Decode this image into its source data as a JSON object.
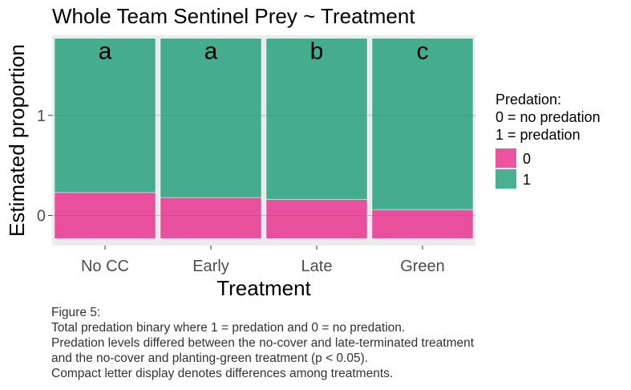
{
  "chart_data": {
    "type": "bar",
    "stacked": true,
    "title": "Whole Team Sentinel Prey ~ Treatment",
    "xlabel": "Treatment",
    "ylabel": "Estimated proportion",
    "categories": [
      "No CC",
      "Early",
      "Late",
      "Green"
    ],
    "ylim": [
      -0.3,
      1.8
    ],
    "yticks": [
      0,
      1
    ],
    "series": [
      {
        "name": "0",
        "color": "#e7298a",
        "lower": [
          -0.23,
          -0.23,
          -0.23,
          -0.23
        ],
        "upper": [
          0.23,
          0.18,
          0.16,
          0.06
        ]
      },
      {
        "name": "1",
        "color": "#1b9e77",
        "lower": [
          0.23,
          0.18,
          0.16,
          0.06
        ],
        "upper": [
          1.77,
          1.77,
          1.77,
          1.77
        ]
      }
    ],
    "letters": [
      "a",
      "a",
      "b",
      "c"
    ],
    "legend": {
      "title_lines": [
        "Predation:",
        "0 = no predation",
        "1 = predation"
      ],
      "position": "right"
    },
    "grid": true,
    "panel_background": "#ebebeb"
  },
  "caption": {
    "lines": [
      "Figure 5:",
      "Total predation binary where 1 = predation and 0 = no predation.",
      "Predation levels differed between the no-cover and late-terminated treatment",
      "and the no-cover and planting-green treatment (p < 0.05).",
      "Compact letter display denotes differences among treatments."
    ]
  }
}
